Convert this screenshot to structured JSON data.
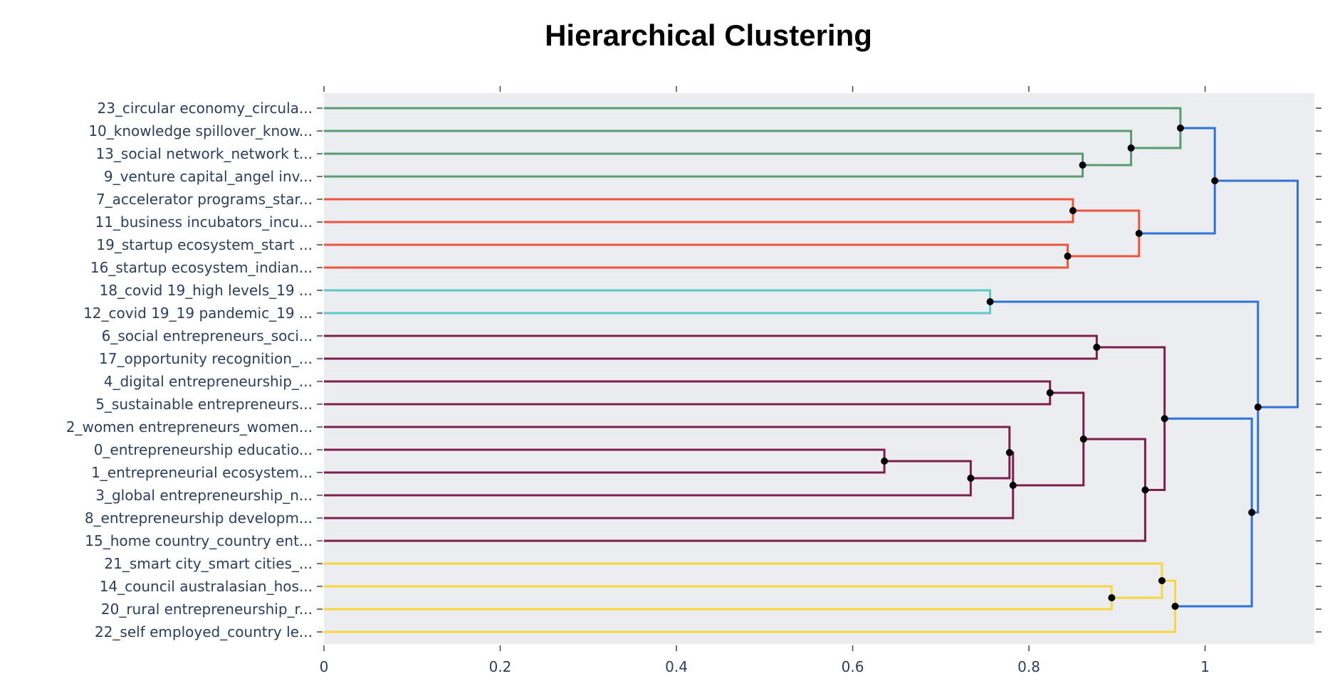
{
  "chart_data": {
    "type": "dendrogram",
    "title": "Hierarchical Clustering",
    "xlabel": "",
    "ylabel": "",
    "xlim": [
      0,
      1.124
    ],
    "xticks": [
      "0",
      "0.2",
      "0.4",
      "0.6",
      "0.8",
      "1"
    ],
    "xtick_values": [
      0,
      0.2,
      0.4,
      0.6,
      0.8,
      1
    ],
    "grid": false,
    "colors": {
      "green": "#579c6f",
      "red": "#ef553b",
      "cyan": "#5ec9c9",
      "purple": "#7b1f4b",
      "yellow": "#f7d840",
      "blue": "#2e74d8",
      "plot_bg": "#ebedf0",
      "text": "#2a3f5f"
    },
    "leaves": [
      "23_circular economy_circula...",
      "10_knowledge spillover_know...",
      "13_social network_network t...",
      "9_venture capital_angel inv...",
      "7_accelerator programs_star...",
      "11_business incubators_incu...",
      "19_startup ecosystem_start ...",
      "16_startup ecosystem_indian...",
      "18_covid 19_high levels_19 ...",
      "12_covid 19_19 pandemic_19 ...",
      "6_social entrepreneurs_soci...",
      "17_opportunity recognition_...",
      "4_digital entrepreneurship_...",
      "5_sustainable entrepreneurs...",
      "2_women entrepreneurs_women...",
      "0_entrepreneurship educatio...",
      "1_entrepreneurial ecosystem...",
      "3_global entrepreneurship_n...",
      "8_entrepreneurship developm...",
      "15_home country_country ent...",
      "21_smart city_smart cities_...",
      "14_council australasian_hos...",
      "20_rural entrepreneurship_r...",
      "22_self employed_country le..."
    ],
    "merges": [
      {
        "children": [
          2,
          3
        ],
        "height": 0.861,
        "color": "green"
      },
      {
        "children": [
          1,
          24
        ],
        "height": 0.916,
        "color": "green"
      },
      {
        "children": [
          0,
          25
        ],
        "height": 0.972,
        "color": "green"
      },
      {
        "children": [
          4,
          5
        ],
        "height": 0.85,
        "color": "red"
      },
      {
        "children": [
          6,
          7
        ],
        "height": 0.844,
        "color": "red"
      },
      {
        "children": [
          27,
          28
        ],
        "height": 0.925,
        "color": "red"
      },
      {
        "children": [
          26,
          29
        ],
        "height": 1.011,
        "color": "blue"
      },
      {
        "children": [
          8,
          9
        ],
        "height": 0.756,
        "color": "cyan"
      },
      {
        "children": [
          10,
          11
        ],
        "height": 0.877,
        "color": "purple"
      },
      {
        "children": [
          12,
          13
        ],
        "height": 0.824,
        "color": "purple"
      },
      {
        "children": [
          15,
          16
        ],
        "height": 0.636,
        "color": "purple"
      },
      {
        "children": [
          34,
          17
        ],
        "height": 0.734,
        "color": "purple"
      },
      {
        "children": [
          14,
          35
        ],
        "height": 0.778,
        "color": "purple"
      },
      {
        "children": [
          36,
          18
        ],
        "height": 0.782,
        "color": "purple"
      },
      {
        "children": [
          33,
          37
        ],
        "height": 0.862,
        "color": "purple"
      },
      {
        "children": [
          38,
          19
        ],
        "height": 0.932,
        "color": "purple"
      },
      {
        "children": [
          32,
          39
        ],
        "height": 0.954,
        "color": "purple"
      },
      {
        "children": [
          21,
          22
        ],
        "height": 0.894,
        "color": "yellow"
      },
      {
        "children": [
          20,
          41
        ],
        "height": 0.951,
        "color": "yellow"
      },
      {
        "children": [
          42,
          23
        ],
        "height": 0.966,
        "color": "yellow"
      },
      {
        "children": [
          40,
          43
        ],
        "height": 1.053,
        "color": "blue"
      },
      {
        "children": [
          31,
          44
        ],
        "height": 1.06,
        "color": "blue"
      },
      {
        "children": [
          30,
          45
        ],
        "height": 1.105,
        "color": "blue",
        "root": true
      }
    ]
  }
}
